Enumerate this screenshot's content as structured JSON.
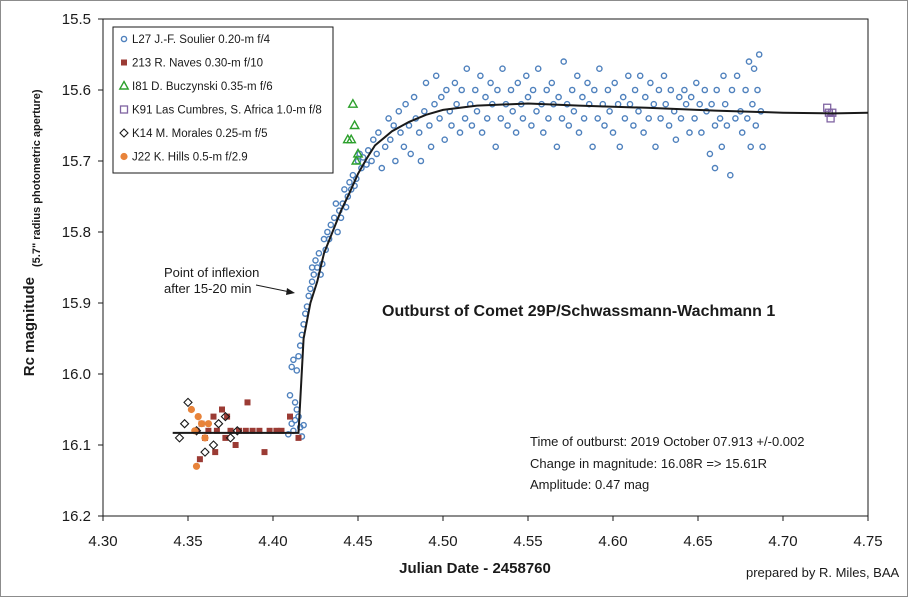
{
  "chart_data": {
    "type": "scatter",
    "title": "Outburst of Comet 29P/Schwassmann-Wachmann  1",
    "xlabel": "Julian Date - 2458760",
    "ylabel": "Rc magnitude",
    "ylabel_sub": "(5.7\" radius photometric aperture)",
    "xlim": [
      4.3,
      4.75
    ],
    "ylim": [
      15.5,
      16.2
    ],
    "y_inverted": true,
    "grid": false,
    "legend_position": "top-left",
    "x_ticks": [
      "4.30",
      "4.35",
      "4.40",
      "4.45",
      "4.50",
      "4.55",
      "4.60",
      "4.65",
      "4.70",
      "4.75"
    ],
    "y_ticks": [
      "15.5",
      "15.6",
      "15.7",
      "15.8",
      "15.9",
      "16.0",
      "16.1",
      "16.2"
    ],
    "colors": {
      "blue": "#4f81bd",
      "red": "#9b3b34",
      "green": "#2ca02c",
      "purple": "#8064a2",
      "black": "#1a1a1a",
      "orange": "#e8833a"
    },
    "series": [
      {
        "name": "L27  J.-F. Soulier  0.20-m f/4",
        "marker": "circle-open",
        "color": "#4f81bd",
        "points": [
          [
            4.409,
            16.085
          ],
          [
            4.411,
            16.07
          ],
          [
            4.412,
            16.08
          ],
          [
            4.413,
            16.065
          ],
          [
            4.414,
            16.05
          ],
          [
            4.415,
            16.06
          ],
          [
            4.416,
            16.075
          ],
          [
            4.417,
            16.088
          ],
          [
            4.418,
            16.072
          ],
          [
            4.41,
            16.03
          ],
          [
            4.411,
            15.99
          ],
          [
            4.412,
            15.98
          ],
          [
            4.413,
            16.04
          ],
          [
            4.414,
            15.995
          ],
          [
            4.415,
            15.975
          ],
          [
            4.416,
            15.96
          ],
          [
            4.417,
            15.945
          ],
          [
            4.418,
            15.93
          ],
          [
            4.419,
            15.915
          ],
          [
            4.42,
            15.905
          ],
          [
            4.421,
            15.89
          ],
          [
            4.422,
            15.88
          ],
          [
            4.423,
            15.87
          ],
          [
            4.423,
            15.85
          ],
          [
            4.424,
            15.86
          ],
          [
            4.425,
            15.84
          ],
          [
            4.426,
            15.85
          ],
          [
            4.427,
            15.83
          ],
          [
            4.428,
            15.86
          ],
          [
            4.429,
            15.845
          ],
          [
            4.43,
            15.81
          ],
          [
            4.431,
            15.825
          ],
          [
            4.432,
            15.8
          ],
          [
            4.433,
            15.81
          ],
          [
            4.434,
            15.79
          ],
          [
            4.436,
            15.78
          ],
          [
            4.437,
            15.76
          ],
          [
            4.438,
            15.8
          ],
          [
            4.439,
            15.77
          ],
          [
            4.44,
            15.78
          ],
          [
            4.441,
            15.76
          ],
          [
            4.442,
            15.74
          ],
          [
            4.443,
            15.765
          ],
          [
            4.444,
            15.75
          ],
          [
            4.445,
            15.73
          ],
          [
            4.446,
            15.74
          ],
          [
            4.447,
            15.72
          ],
          [
            4.448,
            15.735
          ],
          [
            4.449,
            15.725
          ],
          [
            4.45,
            15.7
          ],
          [
            4.451,
            15.69
          ],
          [
            4.452,
            15.71
          ],
          [
            4.453,
            15.695
          ],
          [
            4.455,
            15.705
          ],
          [
            4.456,
            15.685
          ],
          [
            4.458,
            15.7
          ],
          [
            4.459,
            15.67
          ],
          [
            4.461,
            15.69
          ],
          [
            4.462,
            15.66
          ],
          [
            4.464,
            15.71
          ],
          [
            4.466,
            15.68
          ],
          [
            4.468,
            15.64
          ],
          [
            4.469,
            15.67
          ],
          [
            4.471,
            15.65
          ],
          [
            4.472,
            15.7
          ],
          [
            4.474,
            15.63
          ],
          [
            4.475,
            15.66
          ],
          [
            4.477,
            15.68
          ],
          [
            4.478,
            15.62
          ],
          [
            4.48,
            15.65
          ],
          [
            4.481,
            15.69
          ],
          [
            4.483,
            15.61
          ],
          [
            4.484,
            15.64
          ],
          [
            4.486,
            15.66
          ],
          [
            4.487,
            15.7
          ],
          [
            4.489,
            15.63
          ],
          [
            4.49,
            15.59
          ],
          [
            4.492,
            15.65
          ],
          [
            4.493,
            15.68
          ],
          [
            4.495,
            15.62
          ],
          [
            4.496,
            15.58
          ],
          [
            4.498,
            15.64
          ],
          [
            4.499,
            15.61
          ],
          [
            4.501,
            15.67
          ],
          [
            4.502,
            15.6
          ],
          [
            4.504,
            15.63
          ],
          [
            4.505,
            15.65
          ],
          [
            4.507,
            15.59
          ],
          [
            4.508,
            15.62
          ],
          [
            4.51,
            15.66
          ],
          [
            4.511,
            15.6
          ],
          [
            4.513,
            15.64
          ],
          [
            4.514,
            15.57
          ],
          [
            4.516,
            15.62
          ],
          [
            4.517,
            15.65
          ],
          [
            4.519,
            15.6
          ],
          [
            4.52,
            15.63
          ],
          [
            4.522,
            15.58
          ],
          [
            4.523,
            15.66
          ],
          [
            4.525,
            15.61
          ],
          [
            4.526,
            15.64
          ],
          [
            4.528,
            15.59
          ],
          [
            4.529,
            15.62
          ],
          [
            4.531,
            15.68
          ],
          [
            4.532,
            15.6
          ],
          [
            4.534,
            15.64
          ],
          [
            4.535,
            15.57
          ],
          [
            4.537,
            15.62
          ],
          [
            4.538,
            15.65
          ],
          [
            4.54,
            15.6
          ],
          [
            4.541,
            15.63
          ],
          [
            4.543,
            15.66
          ],
          [
            4.544,
            15.59
          ],
          [
            4.546,
            15.62
          ],
          [
            4.547,
            15.64
          ],
          [
            4.549,
            15.58
          ],
          [
            4.55,
            15.61
          ],
          [
            4.552,
            15.65
          ],
          [
            4.553,
            15.6
          ],
          [
            4.555,
            15.63
          ],
          [
            4.556,
            15.57
          ],
          [
            4.558,
            15.62
          ],
          [
            4.559,
            15.66
          ],
          [
            4.561,
            15.6
          ],
          [
            4.562,
            15.64
          ],
          [
            4.564,
            15.59
          ],
          [
            4.565,
            15.62
          ],
          [
            4.567,
            15.68
          ],
          [
            4.568,
            15.61
          ],
          [
            4.57,
            15.64
          ],
          [
            4.571,
            15.56
          ],
          [
            4.573,
            15.62
          ],
          [
            4.574,
            15.65
          ],
          [
            4.576,
            15.6
          ],
          [
            4.577,
            15.63
          ],
          [
            4.579,
            15.58
          ],
          [
            4.58,
            15.66
          ],
          [
            4.582,
            15.61
          ],
          [
            4.583,
            15.64
          ],
          [
            4.585,
            15.59
          ],
          [
            4.586,
            15.62
          ],
          [
            4.588,
            15.68
          ],
          [
            4.589,
            15.6
          ],
          [
            4.591,
            15.64
          ],
          [
            4.592,
            15.57
          ],
          [
            4.594,
            15.62
          ],
          [
            4.595,
            15.65
          ],
          [
            4.597,
            15.6
          ],
          [
            4.598,
            15.63
          ],
          [
            4.6,
            15.66
          ],
          [
            4.601,
            15.59
          ],
          [
            4.603,
            15.62
          ],
          [
            4.604,
            15.68
          ],
          [
            4.606,
            15.61
          ],
          [
            4.607,
            15.64
          ],
          [
            4.609,
            15.58
          ],
          [
            4.61,
            15.62
          ],
          [
            4.612,
            15.65
          ],
          [
            4.613,
            15.6
          ],
          [
            4.615,
            15.63
          ],
          [
            4.616,
            15.58
          ],
          [
            4.618,
            15.66
          ],
          [
            4.619,
            15.61
          ],
          [
            4.621,
            15.64
          ],
          [
            4.622,
            15.59
          ],
          [
            4.624,
            15.62
          ],
          [
            4.625,
            15.68
          ],
          [
            4.627,
            15.6
          ],
          [
            4.628,
            15.64
          ],
          [
            4.63,
            15.58
          ],
          [
            4.631,
            15.62
          ],
          [
            4.633,
            15.65
          ],
          [
            4.634,
            15.6
          ],
          [
            4.636,
            15.63
          ],
          [
            4.637,
            15.67
          ],
          [
            4.639,
            15.61
          ],
          [
            4.64,
            15.64
          ],
          [
            4.642,
            15.6
          ],
          [
            4.643,
            15.62
          ],
          [
            4.645,
            15.66
          ],
          [
            4.646,
            15.61
          ],
          [
            4.648,
            15.64
          ],
          [
            4.649,
            15.59
          ],
          [
            4.651,
            15.62
          ],
          [
            4.652,
            15.66
          ],
          [
            4.654,
            15.6
          ],
          [
            4.655,
            15.63
          ],
          [
            4.657,
            15.69
          ],
          [
            4.658,
            15.62
          ],
          [
            4.66,
            15.65
          ],
          [
            4.661,
            15.6
          ],
          [
            4.663,
            15.64
          ],
          [
            4.664,
            15.68
          ],
          [
            4.666,
            15.62
          ],
          [
            4.667,
            15.65
          ],
          [
            4.669,
            15.72
          ],
          [
            4.67,
            15.6
          ],
          [
            4.672,
            15.64
          ],
          [
            4.673,
            15.58
          ],
          [
            4.675,
            15.63
          ],
          [
            4.676,
            15.66
          ],
          [
            4.678,
            15.6
          ],
          [
            4.679,
            15.64
          ],
          [
            4.681,
            15.68
          ],
          [
            4.682,
            15.62
          ],
          [
            4.684,
            15.65
          ],
          [
            4.685,
            15.6
          ],
          [
            4.687,
            15.63
          ],
          [
            4.688,
            15.68
          ],
          [
            4.66,
            15.71
          ],
          [
            4.665,
            15.58
          ],
          [
            4.68,
            15.56
          ],
          [
            4.683,
            15.57
          ],
          [
            4.686,
            15.55
          ]
        ]
      },
      {
        "name": "213  R. Naves  0.30-m f/10",
        "marker": "square-filled",
        "color": "#9b3b34",
        "points": [
          [
            4.355,
            16.08
          ],
          [
            4.358,
            16.07
          ],
          [
            4.36,
            16.09
          ],
          [
            4.362,
            16.08
          ],
          [
            4.365,
            16.06
          ],
          [
            4.367,
            16.08
          ],
          [
            4.37,
            16.05
          ],
          [
            4.372,
            16.09
          ],
          [
            4.375,
            16.08
          ],
          [
            4.378,
            16.1
          ],
          [
            4.38,
            16.08
          ],
          [
            4.385,
            16.04
          ],
          [
            4.388,
            16.08
          ],
          [
            4.392,
            16.08
          ],
          [
            4.395,
            16.11
          ],
          [
            4.398,
            16.08
          ],
          [
            4.405,
            16.08
          ],
          [
            4.41,
            16.06
          ],
          [
            4.415,
            16.09
          ],
          [
            4.357,
            16.12
          ],
          [
            4.366,
            16.11
          ],
          [
            4.373,
            16.06
          ],
          [
            4.384,
            16.08
          ],
          [
            4.402,
            16.08
          ]
        ]
      },
      {
        "name": "I81 D. Buczynski  0.35-m f/6",
        "marker": "triangle-open",
        "color": "#2ca02c",
        "points": [
          [
            4.444,
            15.67
          ],
          [
            4.446,
            15.67
          ],
          [
            4.448,
            15.65
          ],
          [
            4.447,
            15.62
          ],
          [
            4.449,
            15.7
          ],
          [
            4.45,
            15.69
          ]
        ]
      },
      {
        "name": "K91 Las Cumbres, S. Africa 1.0-m f/8",
        "marker": "square-open",
        "color": "#8064a2",
        "points": [
          [
            4.726,
            15.625
          ],
          [
            4.727,
            15.632
          ],
          [
            4.728,
            15.64
          ],
          [
            4.729,
            15.632
          ]
        ]
      },
      {
        "name": "K14  M. Morales  0.25-m f/5",
        "marker": "diamond-open",
        "color": "#1a1a1a",
        "points": [
          [
            4.345,
            16.09
          ],
          [
            4.348,
            16.07
          ],
          [
            4.35,
            16.04
          ],
          [
            4.355,
            16.08
          ],
          [
            4.36,
            16.11
          ],
          [
            4.365,
            16.1
          ],
          [
            4.368,
            16.07
          ],
          [
            4.372,
            16.06
          ],
          [
            4.375,
            16.09
          ],
          [
            4.379,
            16.08
          ]
        ]
      },
      {
        "name": "J22 K. Hills  0.5-m f/2.9",
        "marker": "circle-filled",
        "color": "#e8833a",
        "points": [
          [
            4.352,
            16.05
          ],
          [
            4.354,
            16.08
          ],
          [
            4.356,
            16.06
          ],
          [
            4.358,
            16.07
          ],
          [
            4.36,
            16.09
          ],
          [
            4.355,
            16.13
          ],
          [
            4.362,
            16.07
          ]
        ]
      }
    ],
    "fit_line": {
      "color": "#1a1a1a",
      "points": [
        [
          4.341,
          16.083
        ],
        [
          4.415,
          16.083
        ],
        [
          4.418,
          15.95
        ],
        [
          4.422,
          15.9
        ],
        [
          4.426,
          15.87
        ],
        [
          4.43,
          15.83
        ],
        [
          4.435,
          15.8
        ],
        [
          4.44,
          15.77
        ],
        [
          4.445,
          15.745
        ],
        [
          4.45,
          15.718
        ],
        [
          4.455,
          15.697
        ],
        [
          4.46,
          15.678
        ],
        [
          4.47,
          15.658
        ],
        [
          4.48,
          15.645
        ],
        [
          4.49,
          15.635
        ],
        [
          4.5,
          15.628
        ],
        [
          4.52,
          15.622
        ],
        [
          4.55,
          15.619
        ],
        [
          4.58,
          15.622
        ],
        [
          4.62,
          15.625
        ],
        [
          4.66,
          15.629
        ],
        [
          4.7,
          15.632
        ],
        [
          4.73,
          15.633
        ],
        [
          4.75,
          15.632
        ]
      ]
    },
    "annotations": {
      "inflexion_line1": "Point of inflexion",
      "inflexion_line2": "after 15-20 min",
      "time_of_outburst": "Time of outburst:   2019 October  07.913 +/-0.002",
      "change_in_magnitude": "Change in magnitude:  16.08R  => 15.61R",
      "amplitude": "Amplitude:  0.47 mag",
      "credit": "prepared by R. Miles, BAA"
    }
  }
}
